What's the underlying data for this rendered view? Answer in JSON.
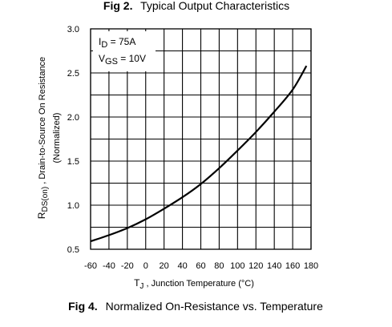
{
  "top_caption": {
    "label": "Fig 2.",
    "text": "Typical Output Characteristics"
  },
  "bottom_caption": {
    "label": "Fig 4.",
    "text": "Normalized On-Resistance vs. Temperature"
  },
  "annotation": {
    "line1": {
      "sym": "I",
      "sub": "D",
      "rest": " = 75A"
    },
    "line2": {
      "sym": "V",
      "sub": "GS",
      "rest": " = 10V"
    }
  },
  "chart_data": {
    "type": "line",
    "title": "Normalized On-Resistance vs. Temperature",
    "xlabel_parts": {
      "sym": "T",
      "sub": "J",
      "rest": " , Junction Temperature (°C)"
    },
    "ylabel_parts": {
      "sym": "R",
      "sub": "DS(on)",
      "rest": " , Drain-to-Source On Resistance",
      "line2": "(Normalized)"
    },
    "xlim": [
      -60,
      180
    ],
    "ylim": [
      0.5,
      3.0
    ],
    "x_ticks": [
      -60,
      -40,
      -20,
      0,
      20,
      40,
      60,
      80,
      100,
      120,
      140,
      160,
      180
    ],
    "x_tick_labels": [
      "-60",
      "-40",
      "-20",
      "0",
      "20",
      "40",
      "60",
      "80",
      "100",
      "120",
      "140",
      "160",
      "180"
    ],
    "y_ticks": [
      0.5,
      1.0,
      1.5,
      2.0,
      2.5,
      3.0
    ],
    "y_tick_labels": [
      "0.5",
      "1.0",
      "1.5",
      "2.0",
      "2.5",
      "3.0"
    ],
    "y_minor_step": 0.25,
    "grid": true,
    "series": [
      {
        "x": [
          -60,
          -40,
          -20,
          0,
          20,
          40,
          60,
          80,
          100,
          120,
          140,
          160,
          175
        ],
        "y": [
          0.59,
          0.66,
          0.74,
          0.84,
          0.96,
          1.09,
          1.24,
          1.42,
          1.62,
          1.83,
          2.06,
          2.31,
          2.58
        ]
      }
    ]
  }
}
